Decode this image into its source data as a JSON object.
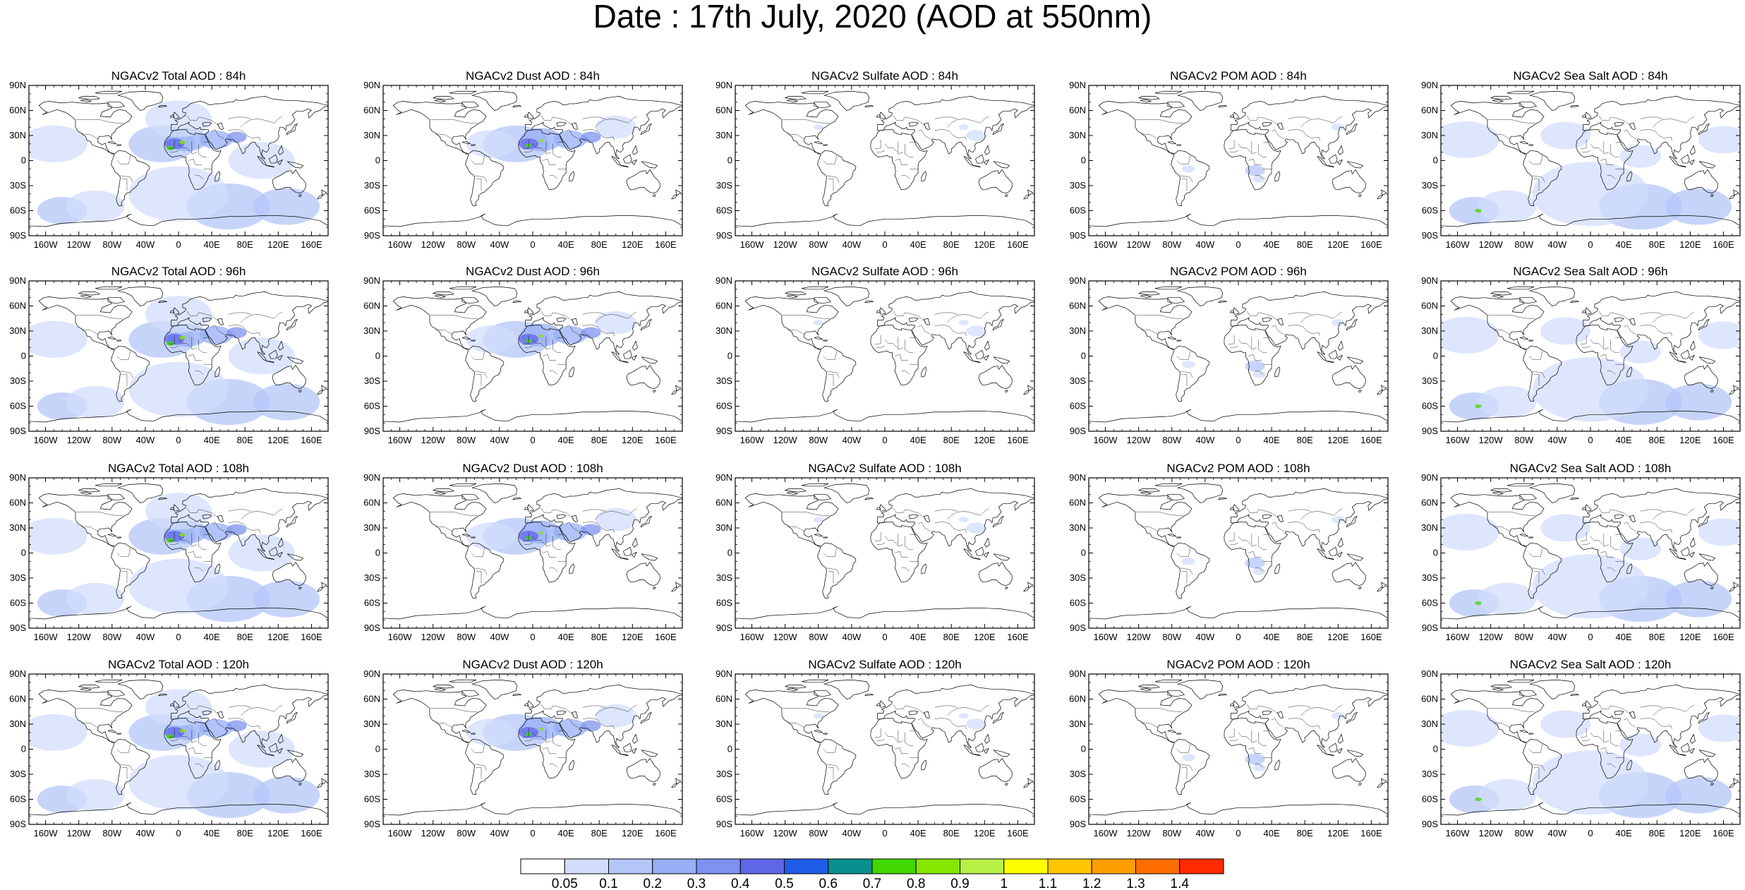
{
  "figure": {
    "title": "Date : 17th July, 2020 (AOD at 550nm)"
  },
  "panel_titles": [
    [
      "NGACv2 Total AOD : 84h",
      "NGACv2 Dust AOD : 84h",
      "NGACv2 Sulfate AOD : 84h",
      "NGACv2 POM AOD : 84h",
      "NGACv2 Sea Salt AOD : 84h"
    ],
    [
      "NGACv2 Total AOD : 96h",
      "NGACv2 Dust AOD : 96h",
      "NGACv2 Sulfate AOD : 96h",
      "NGACv2 POM AOD : 96h",
      "NGACv2 Sea Salt AOD : 96h"
    ],
    [
      "NGACv2 Total AOD : 108h",
      "NGACv2 Dust AOD : 108h",
      "NGACv2 Sulfate AOD : 108h",
      "NGACv2 POM AOD : 108h",
      "NGACv2 Sea Salt AOD : 108h"
    ],
    [
      "NGACv2 Total AOD : 120h",
      "NGACv2 Dust AOD : 120h",
      "NGACv2 Sulfate AOD : 120h",
      "NGACv2 POM AOD : 120h",
      "NGACv2 Sea Salt  AOD : 120h"
    ]
  ],
  "lat_ticks": [
    "90N",
    "60N",
    "30N",
    "0",
    "30S",
    "60S",
    "90S"
  ],
  "lon_ticks": [
    "160W",
    "120W",
    "80W",
    "40W",
    "0",
    "40E",
    "80E",
    "120E",
    "160E"
  ],
  "lat_values": [
    90,
    60,
    30,
    0,
    -30,
    -60,
    -90
  ],
  "lon_values": [
    -160,
    -120,
    -80,
    -40,
    0,
    40,
    80,
    120,
    160
  ],
  "colorbar": {
    "labels": [
      "0.05",
      "0.1",
      "0.2",
      "0.3",
      "0.4",
      "0.5",
      "0.6",
      "0.7",
      "0.8",
      "0.9",
      "1",
      "1.1",
      "1.2",
      "1.3",
      "1.4"
    ],
    "colors": [
      "#ffffff",
      "#d2ddfb",
      "#b4c6f8",
      "#97aff5",
      "#7e91f0",
      "#5f67e8",
      "#1f5de8",
      "#0a8f8f",
      "#40d800",
      "#86e600",
      "#b8f048",
      "#ffff00",
      "#ffc500",
      "#ff9e00",
      "#ff6d00",
      "#ff2a00"
    ]
  }
}
